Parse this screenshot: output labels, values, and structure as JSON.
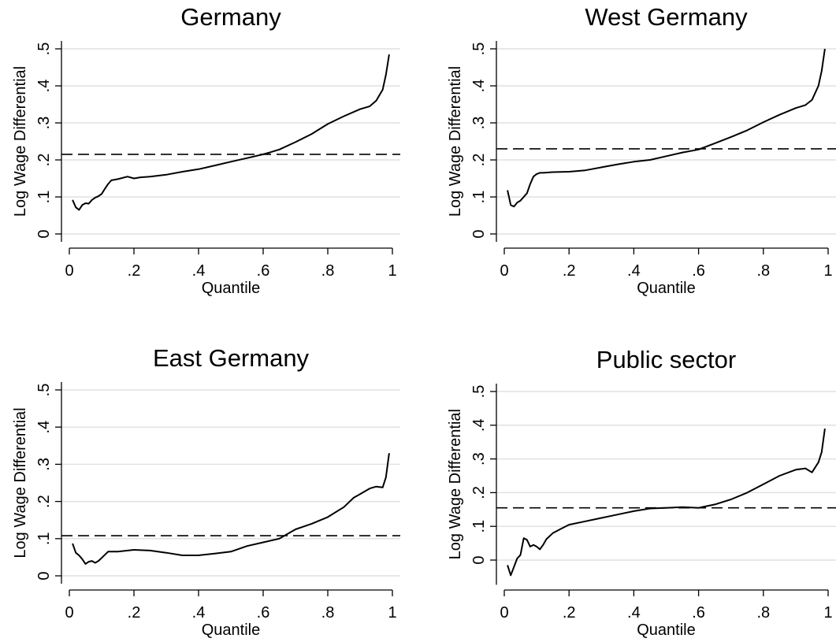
{
  "chart_data": [
    {
      "type": "line",
      "title": "Germany",
      "xlabel": "Quantile",
      "ylabel": "Log Wage Differential",
      "xlim": [
        0,
        1
      ],
      "ylim": [
        0,
        0.5
      ],
      "xticks": [
        0,
        0.2,
        0.4,
        0.6,
        0.8,
        1
      ],
      "xtick_labels": [
        "0",
        ".2",
        ".4",
        ".6",
        ".8",
        "1"
      ],
      "yticks": [
        0,
        0.1,
        0.2,
        0.3,
        0.4,
        0.5
      ],
      "ytick_labels": [
        "0",
        ".1",
        ".2",
        ".3",
        ".4",
        ".5"
      ],
      "grid": "horizontal",
      "reference_line": 0.215,
      "series": [
        {
          "x": [
            0.01,
            0.02,
            0.03,
            0.04,
            0.05,
            0.06,
            0.07,
            0.08,
            0.09,
            0.1,
            0.11,
            0.12,
            0.13,
            0.15,
            0.18,
            0.2,
            0.22,
            0.25,
            0.3,
            0.35,
            0.4,
            0.45,
            0.5,
            0.55,
            0.6,
            0.62,
            0.65,
            0.7,
            0.75,
            0.8,
            0.85,
            0.9,
            0.93,
            0.95,
            0.97,
            0.98,
            0.99
          ],
          "y": [
            0.092,
            0.072,
            0.065,
            0.078,
            0.083,
            0.082,
            0.092,
            0.098,
            0.102,
            0.108,
            0.122,
            0.135,
            0.145,
            0.148,
            0.155,
            0.15,
            0.153,
            0.155,
            0.16,
            0.168,
            0.175,
            0.185,
            0.195,
            0.205,
            0.215,
            0.22,
            0.228,
            0.248,
            0.27,
            0.297,
            0.318,
            0.337,
            0.345,
            0.36,
            0.39,
            0.43,
            0.485
          ]
        }
      ]
    },
    {
      "type": "line",
      "title": "West Germany",
      "xlabel": "Quantile",
      "ylabel": "Log Wage Differential",
      "xlim": [
        0,
        1
      ],
      "ylim": [
        0,
        0.5
      ],
      "xticks": [
        0,
        0.2,
        0.4,
        0.6,
        0.8,
        1
      ],
      "xtick_labels": [
        "0",
        ".2",
        ".4",
        ".6",
        ".8",
        "1"
      ],
      "yticks": [
        0,
        0.1,
        0.2,
        0.3,
        0.4,
        0.5
      ],
      "ytick_labels": [
        "0",
        ".1",
        ".2",
        ".3",
        ".4",
        ".5"
      ],
      "grid": "horizontal",
      "reference_line": 0.23,
      "series": [
        {
          "x": [
            0.01,
            0.02,
            0.03,
            0.04,
            0.05,
            0.06,
            0.07,
            0.08,
            0.09,
            0.1,
            0.11,
            0.12,
            0.15,
            0.2,
            0.25,
            0.3,
            0.35,
            0.4,
            0.45,
            0.5,
            0.55,
            0.6,
            0.65,
            0.7,
            0.75,
            0.8,
            0.85,
            0.9,
            0.93,
            0.95,
            0.97,
            0.98,
            0.99
          ],
          "y": [
            0.118,
            0.078,
            0.074,
            0.085,
            0.09,
            0.1,
            0.11,
            0.135,
            0.155,
            0.162,
            0.165,
            0.165,
            0.167,
            0.168,
            0.172,
            0.18,
            0.188,
            0.195,
            0.2,
            0.21,
            0.22,
            0.228,
            0.245,
            0.262,
            0.28,
            0.302,
            0.322,
            0.34,
            0.348,
            0.362,
            0.4,
            0.44,
            0.5
          ]
        }
      ]
    },
    {
      "type": "line",
      "title": "East Germany",
      "xlabel": "Quantile",
      "ylabel": "Log Wage Differential",
      "xlim": [
        0,
        1
      ],
      "ylim": [
        0,
        0.5
      ],
      "xticks": [
        0,
        0.2,
        0.4,
        0.6,
        0.8,
        1
      ],
      "xtick_labels": [
        "0",
        ".2",
        ".4",
        ".6",
        ".8",
        "1"
      ],
      "yticks": [
        0,
        0.1,
        0.2,
        0.3,
        0.4,
        0.5
      ],
      "ytick_labels": [
        "0",
        ".1",
        ".2",
        ".3",
        ".4",
        ".5"
      ],
      "grid": "horizontal",
      "reference_line": 0.108,
      "series": [
        {
          "x": [
            0.01,
            0.02,
            0.03,
            0.04,
            0.05,
            0.06,
            0.07,
            0.08,
            0.09,
            0.1,
            0.12,
            0.15,
            0.2,
            0.25,
            0.3,
            0.35,
            0.4,
            0.45,
            0.5,
            0.55,
            0.6,
            0.65,
            0.7,
            0.75,
            0.8,
            0.85,
            0.88,
            0.9,
            0.93,
            0.95,
            0.97,
            0.98,
            0.99
          ],
          "y": [
            0.087,
            0.062,
            0.055,
            0.045,
            0.032,
            0.038,
            0.04,
            0.035,
            0.04,
            0.048,
            0.065,
            0.065,
            0.07,
            0.068,
            0.062,
            0.055,
            0.055,
            0.06,
            0.065,
            0.08,
            0.09,
            0.1,
            0.125,
            0.14,
            0.158,
            0.185,
            0.21,
            0.22,
            0.235,
            0.24,
            0.238,
            0.265,
            0.33
          ]
        }
      ]
    },
    {
      "type": "line",
      "title": "Public sector",
      "xlabel": "Quantile",
      "ylabel": "Log Wage Differential",
      "xlim": [
        0,
        1
      ],
      "ylim": [
        -0.05,
        0.5
      ],
      "xticks": [
        0,
        0.2,
        0.4,
        0.6,
        0.8,
        1
      ],
      "xtick_labels": [
        "0",
        ".2",
        ".4",
        ".6",
        ".8",
        "1"
      ],
      "yticks": [
        0,
        0.1,
        0.2,
        0.3,
        0.4,
        0.5
      ],
      "ytick_labels": [
        "0",
        ".1",
        ".2",
        ".3",
        ".4",
        ".5"
      ],
      "grid": "horizontal",
      "reference_line": 0.155,
      "series": [
        {
          "x": [
            0.01,
            0.02,
            0.03,
            0.04,
            0.05,
            0.06,
            0.07,
            0.08,
            0.09,
            0.1,
            0.11,
            0.12,
            0.13,
            0.15,
            0.18,
            0.2,
            0.25,
            0.3,
            0.35,
            0.4,
            0.45,
            0.5,
            0.55,
            0.6,
            0.65,
            0.7,
            0.75,
            0.8,
            0.85,
            0.9,
            0.93,
            0.95,
            0.97,
            0.98,
            0.99
          ],
          "y": [
            -0.015,
            -0.045,
            -0.02,
            0.005,
            0.015,
            0.065,
            0.06,
            0.04,
            0.045,
            0.04,
            0.032,
            0.045,
            0.062,
            0.08,
            0.095,
            0.105,
            0.115,
            0.125,
            0.135,
            0.145,
            0.153,
            0.155,
            0.157,
            0.155,
            0.165,
            0.18,
            0.2,
            0.225,
            0.25,
            0.268,
            0.272,
            0.26,
            0.29,
            0.32,
            0.39
          ]
        }
      ]
    }
  ]
}
